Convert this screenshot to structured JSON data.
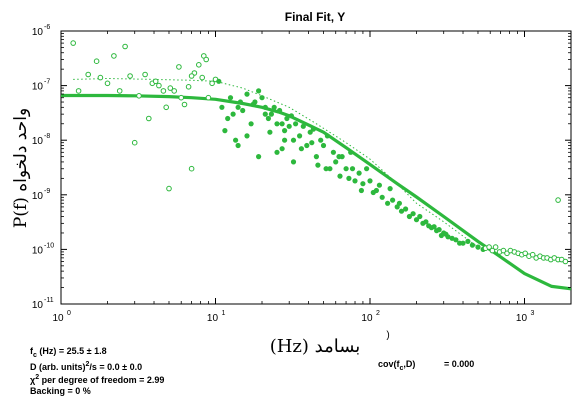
{
  "chart_data": {
    "type": "scatter",
    "title": "Final Fit, Y",
    "xlabel": "(Hz) بسامد",
    "ylabel": "P(f) واحد دلخواه",
    "xscale": "log",
    "yscale": "log",
    "xlim": [
      1,
      2000
    ],
    "ylim": [
      1e-11,
      1e-06
    ],
    "x_ticks": [
      {
        "value": 1,
        "base": "10",
        "exp": "0"
      },
      {
        "value": 10,
        "base": "10",
        "exp": "1"
      },
      {
        "value": 100,
        "base": "10",
        "exp": "2"
      },
      {
        "value": 1000,
        "base": "10",
        "exp": "3"
      }
    ],
    "y_ticks": [
      {
        "value": 1e-06,
        "base": "10",
        "exp": "-6"
      },
      {
        "value": 1e-07,
        "base": "10",
        "exp": "-7"
      },
      {
        "value": 1e-08,
        "base": "10",
        "exp": "-8"
      },
      {
        "value": 1e-09,
        "base": "10",
        "exp": "-9"
      },
      {
        "value": 1e-10,
        "base": "10",
        "exp": "-10"
      },
      {
        "value": 1e-11,
        "base": "10",
        "exp": "-11"
      }
    ],
    "colors": {
      "series": "#2db83d",
      "axis": "#000000"
    },
    "series": [
      {
        "kind": "open-circles",
        "x": [
          1.2,
          1.3,
          1.5,
          1.7,
          1.8,
          2.0,
          2.2,
          2.4,
          2.6,
          2.8,
          3.0,
          3.2,
          3.5,
          3.7,
          3.9,
          4.1,
          4.3,
          4.6,
          4.8,
          5.1,
          5.4,
          5.8,
          6.0,
          6.3,
          6.7,
          7.0,
          7.3,
          7.8,
          8.2,
          8.4,
          8.7,
          9.0,
          9.5,
          10.0,
          5.0,
          7.0
        ],
        "y": [
          6e-07,
          8e-08,
          1.6e-07,
          2.8e-07,
          1.4e-07,
          1.1e-07,
          3.5e-07,
          8e-08,
          5.2e-07,
          1.5e-07,
          9e-09,
          6.5e-08,
          1.6e-07,
          2.5e-08,
          1.1e-07,
          1.2e-07,
          1e-07,
          8e-08,
          4e-08,
          9e-08,
          8e-08,
          2.2e-07,
          6e-08,
          4.5e-08,
          9.5e-08,
          3e-09,
          1.7e-07,
          2.4e-07,
          1.4e-07,
          3.5e-07,
          3e-07,
          6e-08,
          1.1e-07,
          1.3e-07,
          1.3e-09,
          1.5e-07
        ]
      },
      {
        "kind": "filled-dots",
        "x": [
          10.5,
          11,
          12,
          12.5,
          13,
          14,
          14.5,
          15,
          16,
          17,
          18,
          19,
          20,
          21,
          22,
          23,
          24,
          25,
          26,
          27,
          28,
          29,
          30,
          32,
          33,
          35,
          37,
          39,
          41,
          43,
          45,
          48,
          50,
          53,
          55,
          58,
          60,
          63,
          66,
          70,
          73,
          77,
          80,
          85,
          90,
          95,
          100,
          105,
          110,
          115,
          120,
          130,
          135,
          140,
          150,
          155,
          160,
          170,
          180,
          190,
          200,
          210,
          220,
          230,
          240,
          250,
          260,
          270,
          280,
          290,
          300,
          310,
          320,
          340,
          360,
          380,
          400,
          430,
          460,
          500,
          540,
          14,
          16,
          19,
          21,
          25,
          28,
          32,
          36,
          42,
          52,
          64,
          75,
          88,
          11.5,
          13.5,
          17.5,
          22.5,
          27,
          31,
          46
        ],
        "y": [
          1.2e-07,
          4e-08,
          2.5e-08,
          6e-08,
          3e-08,
          4e-08,
          5e-08,
          3.5e-08,
          7e-08,
          2e-08,
          5e-08,
          8e-08,
          6e-08,
          4e-08,
          2.5e-08,
          3e-08,
          4e-08,
          2e-08,
          3.5e-08,
          2e-08,
          1.5e-08,
          2.5e-08,
          1.8e-08,
          1e-08,
          2e-08,
          1.2e-08,
          1.8e-08,
          8e-09,
          1.4e-08,
          1.6e-08,
          5e-09,
          1e-08,
          8e-09,
          1.2e-08,
          3e-09,
          6e-09,
          4e-09,
          5e-09,
          5e-09,
          3e-09,
          2e-09,
          3e-09,
          1.8e-09,
          2.5e-09,
          1.6e-09,
          3e-09,
          1.8e-09,
          1.1e-09,
          1.2e-09,
          1.5e-09,
          9e-10,
          7e-10,
          1.3e-09,
          8e-10,
          6e-10,
          7e-10,
          5e-10,
          5.5e-10,
          4e-10,
          4.5e-10,
          3.5e-10,
          4e-10,
          3e-10,
          3.2e-10,
          2.7e-10,
          2.5e-10,
          2.6e-10,
          2.2e-10,
          2.3e-10,
          1.8e-10,
          2e-10,
          1.9e-10,
          1.7e-10,
          1.6e-10,
          1.5e-10,
          1.3e-10,
          1.3e-10,
          1.4e-10,
          1.2e-10,
          1.1e-10,
          1e-10,
          8e-09,
          1.2e-08,
          5e-09,
          3e-08,
          6e-09,
          1e-08,
          4e-09,
          7e-09,
          9e-09,
          3e-09,
          2.2e-09,
          6e-09,
          1.2e-09,
          1.5e-08,
          1e-08,
          4.5e-08,
          1.4e-08,
          7e-09,
          2.8e-08,
          3.5e-09
        ]
      },
      {
        "kind": "open-circles-tail",
        "x": [
          560,
          590,
          620,
          650,
          690,
          730,
          770,
          810,
          860,
          910,
          960,
          1010,
          1070,
          1130,
          1190,
          1260,
          1330,
          1400,
          1480,
          1560,
          1650,
          1740,
          1840,
          1650
        ],
        "y": [
          1.05e-10,
          1.1e-10,
          9.5e-11,
          1.1e-10,
          9e-11,
          9.5e-11,
          8.5e-11,
          9.5e-11,
          9e-11,
          8.5e-11,
          8e-11,
          8.5e-11,
          7.5e-11,
          8e-11,
          7e-11,
          7.5e-11,
          7e-11,
          7e-11,
          6.5e-11,
          7e-11,
          6.5e-11,
          6.5e-11,
          6e-11,
          8e-10
        ]
      },
      {
        "kind": "fit-line",
        "x": [
          1,
          2,
          3,
          5,
          7,
          10,
          15,
          20,
          25.5,
          30,
          40,
          50,
          70,
          100,
          150,
          200,
          300,
          500,
          700,
          1000,
          1500,
          2000
        ],
        "y": [
          6.6e-08,
          6.6e-08,
          6.5e-08,
          6.3e-08,
          6e-08,
          5.6e-08,
          4.7e-08,
          4e-08,
          3.3e-08,
          2.8e-08,
          1.9e-08,
          1.4e-08,
          7.3e-09,
          3.6e-09,
          1.6e-09,
          9.1e-10,
          4e-10,
          1.4e-10,
          7.3e-11,
          3.6e-11,
          2.1e-11,
          1.9e-11
        ]
      },
      {
        "kind": "dotted-guide",
        "x": [
          1.2,
          2,
          4,
          7,
          10,
          15,
          20,
          30,
          45,
          70,
          100,
          150,
          200,
          300,
          500
        ],
        "y": [
          1.3e-07,
          1.35e-07,
          1.3e-07,
          1.25e-07,
          1.2e-07,
          9e-08,
          6.5e-08,
          4e-08,
          2e-08,
          9e-09,
          4.5e-09,
          1.6e-09,
          7e-10,
          3.2e-10,
          1.1e-10
        ]
      }
    ]
  },
  "fit_results": {
    "line1_prefix": "f",
    "line1_sub": "c",
    "line1_rest": " (Hz) = 25.5 ± 1.8",
    "line2_a": "D (arb. units)",
    "line2_sup": "2",
    "line2_b": "/s = 0.0 ± 0.0",
    "line3_chi": "χ",
    "line3_sup": "2",
    "line3_rest": " per degree of freedom = 2.99",
    "line4": "Backing = 0 %",
    "cov_a": "cov(f",
    "cov_sub": "c",
    "cov_b": ",D)",
    "cov_value": "= 0.000",
    "marker": ")"
  }
}
